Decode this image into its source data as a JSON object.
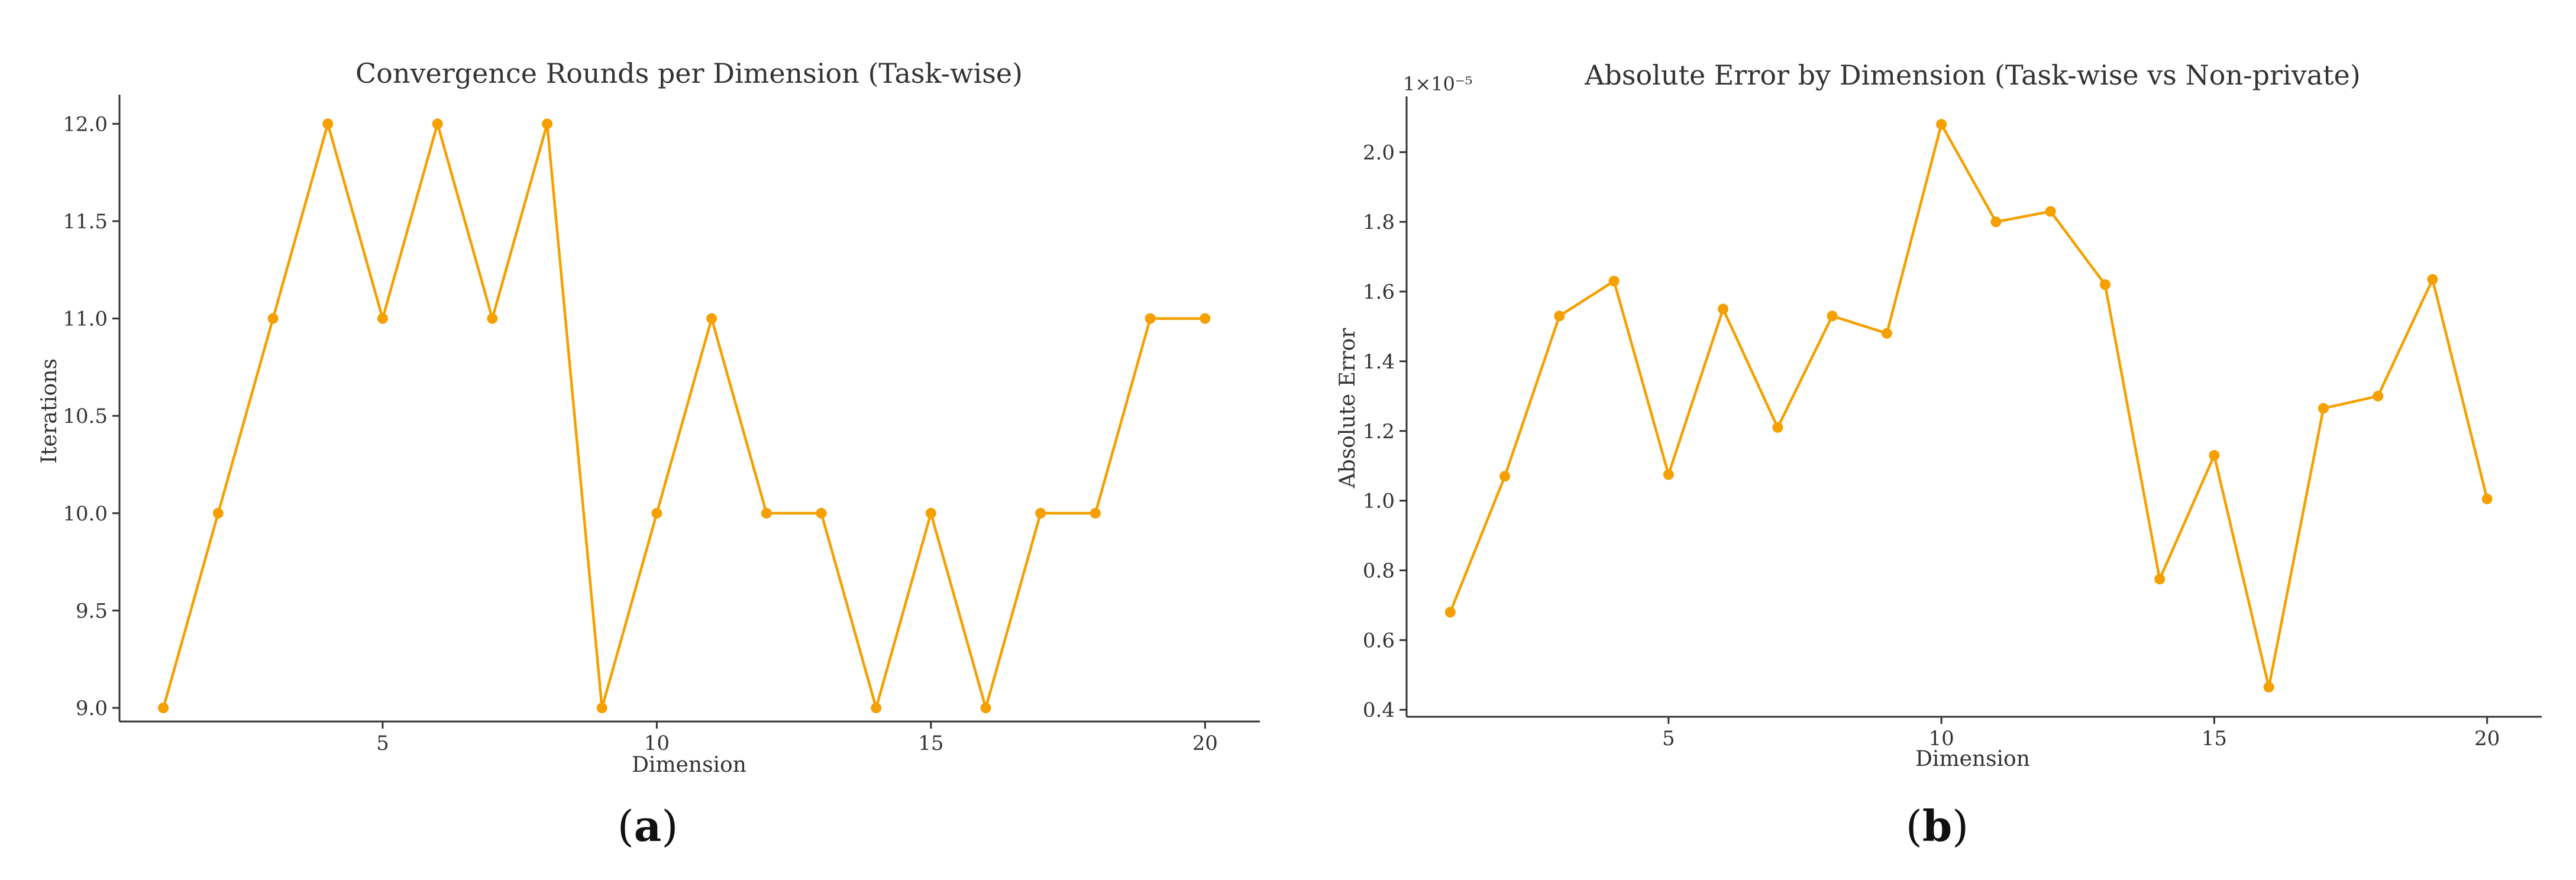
{
  "colors": {
    "series": "#F5A000",
    "axis": "#333333"
  },
  "chart_data": [
    {
      "type": "line",
      "title": "Convergence Rounds per Dimension (Task-wise)",
      "xlabel": "Dimension",
      "ylabel": "Iterations",
      "x": [
        1,
        2,
        3,
        4,
        5,
        6,
        7,
        8,
        9,
        10,
        11,
        12,
        13,
        14,
        15,
        16,
        17,
        18,
        19,
        20
      ],
      "values": [
        9,
        10,
        11,
        12,
        11,
        12,
        11,
        12,
        9,
        10,
        11,
        10,
        10,
        9,
        10,
        9,
        10,
        10,
        11,
        11
      ],
      "xlim": [
        0.2,
        21.0
      ],
      "ylim": [
        8.93,
        12.15
      ],
      "xticks": [
        5,
        10,
        15,
        20
      ],
      "xtick_labels": [
        "5",
        "10",
        "15",
        "20"
      ],
      "yticks": [
        9.0,
        9.5,
        10.0,
        10.5,
        11.0,
        11.5,
        12.0
      ],
      "ytick_labels": [
        "9.0",
        "9.5",
        "10.0",
        "10.5",
        "11.0",
        "11.5",
        "12.0"
      ],
      "grid": false,
      "panel_label_open": "(",
      "panel_label_letter": "a",
      "panel_label_close": ")"
    },
    {
      "type": "line",
      "title": "Absolute Error by Dimension (Task-wise vs Non-private)",
      "xlabel": "Dimension",
      "ylabel": "Absolute Error",
      "y_offset_label": "1×10⁻⁵",
      "x": [
        1,
        2,
        3,
        4,
        5,
        6,
        7,
        8,
        9,
        10,
        11,
        12,
        13,
        14,
        15,
        16,
        17,
        18,
        19,
        20
      ],
      "values": [
        0.68,
        1.07,
        1.53,
        1.63,
        1.075,
        1.55,
        1.21,
        1.53,
        1.48,
        2.08,
        1.8,
        1.83,
        1.62,
        0.775,
        1.13,
        0.465,
        1.265,
        1.3,
        1.635,
        1.005
      ],
      "xlim": [
        0.2,
        21.0
      ],
      "ylim": [
        0.38,
        2.16
      ],
      "xticks": [
        5,
        10,
        15,
        20
      ],
      "xtick_labels": [
        "5",
        "10",
        "15",
        "20"
      ],
      "yticks": [
        0.4,
        0.6,
        0.8,
        1.0,
        1.2,
        1.4,
        1.6,
        1.8,
        2.0
      ],
      "ytick_labels": [
        "0.4",
        "0.6",
        "0.8",
        "1.0",
        "1.2",
        "1.4",
        "1.6",
        "1.8",
        "2.0"
      ],
      "grid": false,
      "panel_label_open": "(",
      "panel_label_letter": "b",
      "panel_label_close": ")"
    }
  ]
}
